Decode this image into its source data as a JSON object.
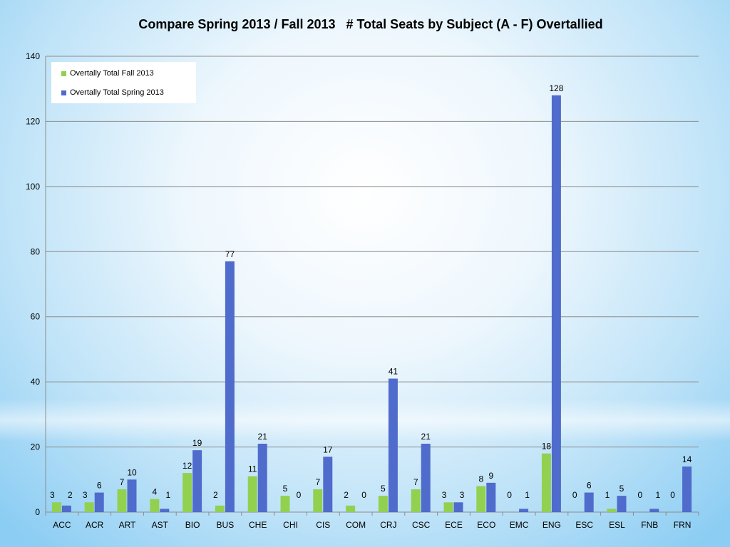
{
  "colors": {
    "fall": "#92d050",
    "spring": "#4f6bcc"
  },
  "chart_data": {
    "type": "bar",
    "title": "Compare Spring 2013 / Fall 2013   # Total Seats by Subject (A - F) Overtallied",
    "categories": [
      "ACC",
      "ACR",
      "ART",
      "AST",
      "BIO",
      "BUS",
      "CHE",
      "CHI",
      "CIS",
      "COM",
      "CRJ",
      "CSC",
      "ECE",
      "ECO",
      "EMC",
      "ENG",
      "ESC",
      "ESL",
      "FNB",
      "FRN"
    ],
    "series": [
      {
        "name": "Overtally Total Fall 2013",
        "values": [
          3,
          3,
          7,
          4,
          12,
          2,
          11,
          5,
          7,
          2,
          5,
          7,
          3,
          8,
          0,
          18,
          0,
          1,
          0,
          0
        ]
      },
      {
        "name": "Overtally Total Spring 2013",
        "values": [
          2,
          6,
          10,
          1,
          19,
          77,
          21,
          0,
          17,
          0,
          41,
          21,
          3,
          9,
          1,
          128,
          6,
          5,
          1,
          14
        ]
      }
    ],
    "ylim": [
      0,
      140
    ],
    "yticks": [
      0,
      20,
      40,
      60,
      80,
      100,
      120,
      140
    ],
    "grid": true,
    "legend_position": "top-left"
  }
}
